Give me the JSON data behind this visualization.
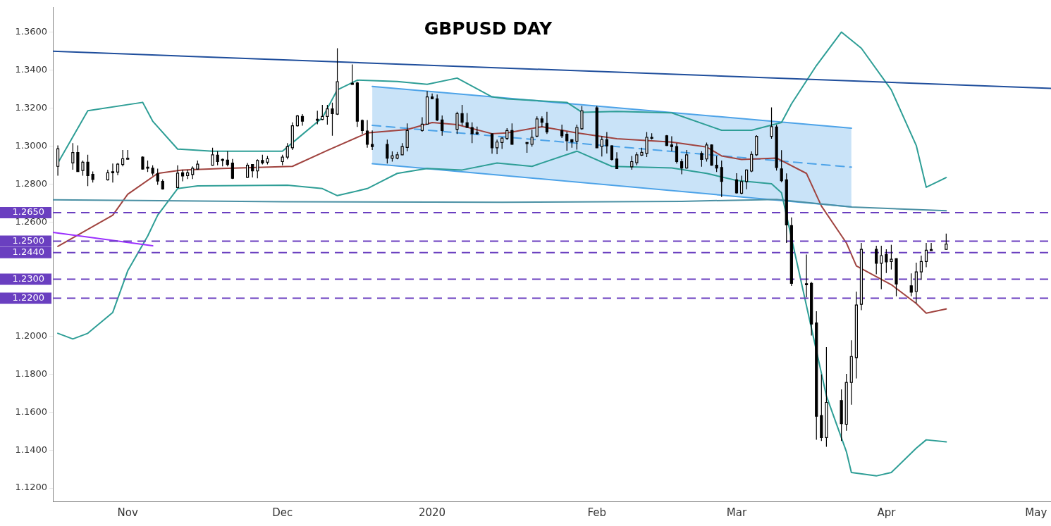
{
  "chart_data": {
    "type": "candlestick",
    "title": "GBPUSD DAY",
    "x": [
      "2019-10-18",
      "2019-10-21",
      "2019-10-22",
      "2019-10-23",
      "2019-10-24",
      "2019-10-25",
      "2019-10-28",
      "2019-10-29",
      "2019-10-30",
      "2019-10-31",
      "2019-11-01",
      "2019-11-04",
      "2019-11-05",
      "2019-11-06",
      "2019-11-07",
      "2019-11-08",
      "2019-11-11",
      "2019-11-12",
      "2019-11-13",
      "2019-11-14",
      "2019-11-15",
      "2019-11-18",
      "2019-11-19",
      "2019-11-20",
      "2019-11-21",
      "2019-11-22",
      "2019-11-25",
      "2019-11-26",
      "2019-11-27",
      "2019-11-28",
      "2019-11-29",
      "2019-12-02",
      "2019-12-03",
      "2019-12-04",
      "2019-12-05",
      "2019-12-06",
      "2019-12-09",
      "2019-12-10",
      "2019-12-11",
      "2019-12-12",
      "2019-12-13",
      "2019-12-16",
      "2019-12-17",
      "2019-12-18",
      "2019-12-19",
      "2019-12-20",
      "2019-12-23",
      "2019-12-24",
      "2019-12-25",
      "2019-12-26",
      "2019-12-27",
      "2019-12-30",
      "2019-12-31",
      "2020-01-01",
      "2020-01-02",
      "2020-01-03",
      "2020-01-06",
      "2020-01-07",
      "2020-01-08",
      "2020-01-09",
      "2020-01-10",
      "2020-01-13",
      "2020-01-14",
      "2020-01-15",
      "2020-01-16",
      "2020-01-17",
      "2020-01-20",
      "2020-01-21",
      "2020-01-22",
      "2020-01-23",
      "2020-01-24",
      "2020-01-27",
      "2020-01-28",
      "2020-01-29",
      "2020-01-30",
      "2020-01-31",
      "2020-02-03",
      "2020-02-04",
      "2020-02-05",
      "2020-02-06",
      "2020-02-07",
      "2020-02-10",
      "2020-02-11",
      "2020-02-12",
      "2020-02-13",
      "2020-02-14",
      "2020-02-17",
      "2020-02-18",
      "2020-02-19",
      "2020-02-20",
      "2020-02-21",
      "2020-02-24",
      "2020-02-25",
      "2020-02-26",
      "2020-02-27",
      "2020-02-28",
      "2020-03-02",
      "2020-03-03",
      "2020-03-04",
      "2020-03-05",
      "2020-03-06",
      "2020-03-09",
      "2020-03-10",
      "2020-03-11",
      "2020-03-12",
      "2020-03-13",
      "2020-03-16",
      "2020-03-17",
      "2020-03-18",
      "2020-03-19",
      "2020-03-20",
      "2020-03-23",
      "2020-03-24",
      "2020-03-25",
      "2020-03-26",
      "2020-03-27",
      "2020-03-30",
      "2020-03-31",
      "2020-04-01",
      "2020-04-02",
      "2020-04-03",
      "2020-04-06",
      "2020-04-07",
      "2020-04-08",
      "2020-04-09",
      "2020-04-10",
      "2020-04-13"
    ],
    "ohlc": [
      [
        1.2894,
        1.3004,
        1.2845,
        1.2986
      ],
      [
        1.2912,
        1.3016,
        1.2876,
        1.2967
      ],
      [
        1.2967,
        1.3004,
        1.2865,
        1.2867
      ],
      [
        1.2872,
        1.2925,
        1.2845,
        1.2916
      ],
      [
        1.2916,
        1.2955,
        1.279,
        1.2845
      ],
      [
        1.2852,
        1.2867,
        1.2809,
        1.2825
      ],
      [
        1.2823,
        1.2876,
        1.2819,
        1.286
      ],
      [
        1.2866,
        1.2909,
        1.2809,
        1.286
      ],
      [
        1.2864,
        1.2912,
        1.2848,
        1.2906
      ],
      [
        1.2904,
        1.298,
        1.2894,
        1.2934
      ],
      [
        1.2934,
        1.298,
        1.2931,
        1.2937
      ],
      [
        1.2943,
        1.2947,
        1.2876,
        1.288
      ],
      [
        1.289,
        1.2925,
        1.2864,
        1.2887
      ],
      [
        1.2884,
        1.29,
        1.2845,
        1.2858
      ],
      [
        1.2855,
        1.2882,
        1.2797,
        1.2817
      ],
      [
        1.2815,
        1.2825,
        1.2772,
        1.2775
      ],
      [
        1.2782,
        1.29,
        1.278,
        1.2858
      ],
      [
        1.286,
        1.2876,
        1.2815,
        1.2843
      ],
      [
        1.2845,
        1.2876,
        1.2827,
        1.286
      ],
      [
        1.2851,
        1.2894,
        1.2827,
        1.2884
      ],
      [
        1.288,
        1.2925,
        1.2876,
        1.2906
      ],
      [
        1.29,
        1.2992,
        1.2898,
        1.2955
      ],
      [
        1.2953,
        1.2974,
        1.29,
        1.2919
      ],
      [
        1.2931,
        1.2935,
        1.2894,
        1.293
      ],
      [
        1.2927,
        1.2974,
        1.2894,
        1.2904
      ],
      [
        1.2911,
        1.2933,
        1.2827,
        1.2831
      ],
      [
        1.2836,
        1.2912,
        1.2834,
        1.29
      ],
      [
        1.2904,
        1.2906,
        1.2836,
        1.287
      ],
      [
        1.287,
        1.2931,
        1.2831,
        1.2925
      ],
      [
        1.2925,
        1.2955,
        1.2904,
        1.2912
      ],
      [
        1.2916,
        1.2949,
        1.2904,
        1.2934
      ],
      [
        1.2919,
        1.2955,
        1.29,
        1.2943
      ],
      [
        1.2943,
        1.3016,
        1.2931,
        1.2998
      ],
      [
        1.2992,
        1.3126,
        1.298,
        1.3108
      ],
      [
        1.3108,
        1.3165,
        1.3104,
        1.316
      ],
      [
        1.3157,
        1.3169,
        1.3108,
        1.3132
      ],
      [
        1.3142,
        1.3187,
        1.3116,
        1.314
      ],
      [
        1.3141,
        1.3218,
        1.3138,
        1.3157
      ],
      [
        1.3157,
        1.3218,
        1.3114,
        1.3197
      ],
      [
        1.3197,
        1.323,
        1.3055,
        1.3172
      ],
      [
        1.3169,
        1.3516,
        1.3165,
        1.334
      ],
      [
        1.3331,
        1.3431,
        1.3324,
        1.3326
      ],
      [
        1.3333,
        1.334,
        1.3102,
        1.3132
      ],
      [
        1.3136,
        1.3141,
        1.3065,
        1.3083
      ],
      [
        1.308,
        1.3138,
        1.2992,
        1.301
      ],
      [
        1.301,
        1.3083,
        1.298,
        1.2998
      ],
      [
        1.301,
        1.3035,
        1.2909,
        1.2937
      ],
      [
        1.2937,
        1.2973,
        1.2919,
        1.2949
      ],
      [
        1.2937,
        1.297,
        1.2931,
        1.2955
      ],
      [
        1.2955,
        1.3016,
        1.2953,
        1.2998
      ],
      [
        1.2994,
        1.312,
        1.2973,
        1.3083
      ],
      [
        1.3083,
        1.3153,
        1.3077,
        1.3116
      ],
      [
        1.3116,
        1.3291,
        1.3114,
        1.326
      ],
      [
        1.326,
        1.3278,
        1.3248,
        1.325
      ],
      [
        1.325,
        1.3272,
        1.3132,
        1.3138
      ],
      [
        1.3138,
        1.3162,
        1.3055,
        1.3083
      ],
      [
        1.3089,
        1.3181,
        1.3065,
        1.3172
      ],
      [
        1.3172,
        1.3218,
        1.3108,
        1.3126
      ],
      [
        1.3124,
        1.3175,
        1.3096,
        1.3099
      ],
      [
        1.3099,
        1.3126,
        1.3016,
        1.3067
      ],
      [
        1.3072,
        1.3104,
        1.3059,
        1.307
      ],
      [
        1.3065,
        1.3067,
        1.2961,
        1.2992
      ],
      [
        1.2992,
        1.3035,
        1.2958,
        1.3022
      ],
      [
        1.302,
        1.3047,
        1.2986,
        1.3043
      ],
      [
        1.3041,
        1.3095,
        1.3033,
        1.3083
      ],
      [
        1.3083,
        1.312,
        1.3008,
        1.301
      ],
      [
        1.302,
        1.3022,
        1.2965,
        1.3018
      ],
      [
        1.301,
        1.3087,
        1.2998,
        1.3047
      ],
      [
        1.3053,
        1.3157,
        1.3047,
        1.3144
      ],
      [
        1.3144,
        1.3157,
        1.3102,
        1.3126
      ],
      [
        1.312,
        1.3181,
        1.3065,
        1.3075
      ],
      [
        1.3083,
        1.3114,
        1.3043,
        1.3055
      ],
      [
        1.3063,
        1.3077,
        1.2977,
        1.3029
      ],
      [
        1.3035,
        1.3037,
        1.2992,
        1.3022
      ],
      [
        1.3026,
        1.3114,
        1.2982,
        1.3099
      ],
      [
        1.3092,
        1.3212,
        1.3087,
        1.3187
      ],
      [
        1.3202,
        1.3212,
        1.299,
        1.2992
      ],
      [
        1.2998,
        1.3053,
        1.2946,
        1.3035
      ],
      [
        1.3035,
        1.3075,
        1.2962,
        1.3002
      ],
      [
        1.3002,
        1.3004,
        1.2925,
        1.2931
      ],
      [
        1.2933,
        1.2968,
        1.288,
        1.2882
      ],
      [
        1.2892,
        1.2949,
        1.2876,
        1.2919
      ],
      [
        1.2913,
        1.2968,
        1.29,
        1.2955
      ],
      [
        1.2953,
        1.2992,
        1.2949,
        1.2968
      ],
      [
        1.2962,
        1.3075,
        1.2943,
        1.3047
      ],
      [
        1.3047,
        1.3068,
        1.3035,
        1.3045
      ],
      [
        1.3055,
        1.3059,
        1.3002,
        1.3004
      ],
      [
        1.3007,
        1.3053,
        1.2974,
        1.2998
      ],
      [
        1.2998,
        1.3016,
        1.2909,
        1.2919
      ],
      [
        1.2919,
        1.2933,
        1.2852,
        1.2885
      ],
      [
        1.2885,
        1.298,
        1.2882,
        1.2955
      ],
      [
        1.2962,
        1.2974,
        1.2892,
        1.2931
      ],
      [
        1.2933,
        1.3019,
        1.2919,
        1.3007
      ],
      [
        1.3007,
        1.301,
        1.2898,
        1.29
      ],
      [
        1.29,
        1.2949,
        1.2864,
        1.2885
      ],
      [
        1.2888,
        1.2925,
        1.2733,
        1.2815
      ],
      [
        1.2823,
        1.2858,
        1.275,
        1.2754
      ],
      [
        1.2753,
        1.2845,
        1.2747,
        1.2814
      ],
      [
        1.2814,
        1.2877,
        1.2774,
        1.2875
      ],
      [
        1.2869,
        1.2973,
        1.2863,
        1.2957
      ],
      [
        1.2955,
        1.3058,
        1.2949,
        1.3052
      ],
      [
        1.3052,
        1.3205,
        1.304,
        1.3103
      ],
      [
        1.3101,
        1.3113,
        1.2872,
        1.2888
      ],
      [
        1.2881,
        1.2979,
        1.2811,
        1.2818
      ],
      [
        1.2823,
        1.2857,
        1.2491,
        1.2586
      ],
      [
        1.2582,
        1.2625,
        1.2265,
        1.2278
      ],
      [
        1.2276,
        1.243,
        1.2204,
        1.2272
      ],
      [
        1.2278,
        1.2285,
        1.2003,
        1.2064
      ],
      [
        1.207,
        1.2131,
        1.1454,
        1.1578
      ],
      [
        1.1582,
        1.1798,
        1.1448,
        1.1466
      ],
      [
        1.1466,
        1.1942,
        1.1417,
        1.1651
      ],
      [
        1.1661,
        1.172,
        1.1448,
        1.1539
      ],
      [
        1.1536,
        1.1801,
        1.1502,
        1.1756
      ],
      [
        1.1756,
        1.1978,
        1.1639,
        1.1893
      ],
      [
        1.1887,
        1.2234,
        1.1777,
        1.2164
      ],
      [
        1.2168,
        1.2491,
        1.2137,
        1.2457
      ],
      [
        1.2457,
        1.2476,
        1.2326,
        1.2384
      ],
      [
        1.2384,
        1.2476,
        1.2247,
        1.2424
      ],
      [
        1.243,
        1.2457,
        1.2332,
        1.2391
      ],
      [
        1.2393,
        1.2481,
        1.2351,
        1.2405
      ],
      [
        1.2408,
        1.241,
        1.221,
        1.2274
      ],
      [
        1.2265,
        1.233,
        1.221,
        1.2232
      ],
      [
        1.2235,
        1.2387,
        1.2174,
        1.2338
      ],
      [
        1.2338,
        1.2424,
        1.2296,
        1.2393
      ],
      [
        1.2393,
        1.2491,
        1.2363,
        1.2452
      ],
      [
        1.2456,
        1.2491,
        1.245,
        1.2452
      ],
      [
        1.2457,
        1.254,
        1.2455,
        1.2485
      ]
    ],
    "series": [
      {
        "type": "line",
        "color": "#1f4e9c",
        "x": [
          "2019-10-17",
          "2020-05-04"
        ],
        "values": [
          1.35,
          1.3305
        ]
      },
      {
        "type": "line",
        "color": "#9b30ff",
        "x": [
          "2019-10-17",
          "2019-11-06"
        ],
        "values": [
          1.2546,
          1.2476
        ]
      },
      {
        "type": "line",
        "color": "#4a90a4",
        "x": [
          "2019-10-17",
          "2019-12-02",
          "2020-01-15",
          "2020-02-20",
          "2020-03-10",
          "2020-03-25",
          "2020-04-13"
        ],
        "values": [
          1.2718,
          1.2708,
          1.2705,
          1.271,
          1.272,
          1.268,
          1.266
        ]
      },
      {
        "type": "line",
        "color": "#2e9e96",
        "x": [
          "2019-10-18",
          "2019-10-24",
          "2019-11-04",
          "2019-11-06",
          "2019-11-11",
          "2019-11-18",
          "2019-12-02",
          "2019-12-05",
          "2019-12-10",
          "2019-12-13",
          "2019-12-17",
          "2019-12-25",
          "2019-12-31",
          "2020-01-06",
          "2020-01-13",
          "2020-01-16",
          "2020-01-28",
          "2020-01-31",
          "2020-02-07",
          "2020-02-18",
          "2020-02-28",
          "2020-03-05",
          "2020-03-11",
          "2020-03-13",
          "2020-03-18",
          "2020-03-23",
          "2020-03-27",
          "2020-04-02",
          "2020-04-07",
          "2020-04-09",
          "2020-04-13"
        ],
        "values": [
          1.2912,
          1.3187,
          1.3231,
          1.3132,
          1.2985,
          1.2974,
          1.2974,
          1.304,
          1.315,
          1.3297,
          1.3348,
          1.3341,
          1.3326,
          1.3359,
          1.326,
          1.3249,
          1.3231,
          1.3179,
          1.3183,
          1.3176,
          1.3084,
          1.3084,
          1.3125,
          1.3223,
          1.3425,
          1.3601,
          1.3516,
          1.3297,
          1.3004,
          1.2784,
          1.2835
        ]
      },
      {
        "type": "line",
        "color": "#2e9e96",
        "x": [
          "2019-10-18",
          "2019-10-21",
          "2019-10-24",
          "2019-10-29",
          "2019-11-01",
          "2019-11-05",
          "2019-11-07",
          "2019-11-11",
          "2019-11-15",
          "2019-12-03",
          "2019-12-10",
          "2019-12-13",
          "2019-12-19",
          "2019-12-25",
          "2019-12-31",
          "2020-01-07",
          "2020-01-14",
          "2020-01-21",
          "2020-01-30",
          "2020-02-06",
          "2020-02-18",
          "2020-02-25",
          "2020-03-02",
          "2020-03-09",
          "2020-03-11",
          "2020-03-20",
          "2020-03-24",
          "2020-03-25",
          "2020-03-30",
          "2020-04-02",
          "2020-04-07",
          "2020-04-09",
          "2020-04-13"
        ],
        "values": [
          1.2015,
          1.1985,
          1.2015,
          1.2125,
          1.2344,
          1.2527,
          1.2637,
          1.2777,
          1.2791,
          1.2795,
          1.2777,
          1.274,
          1.2777,
          1.2857,
          1.2883,
          1.2875,
          1.2912,
          1.2894,
          1.2974,
          1.2894,
          1.2886,
          1.2857,
          1.282,
          1.2802,
          1.2755,
          1.1685,
          1.1392,
          1.1282,
          1.1264,
          1.1282,
          1.141,
          1.1454,
          1.1443
        ]
      },
      {
        "type": "line",
        "color": "#a0433f",
        "x": [
          "2019-10-18",
          "2019-10-29",
          "2019-11-01",
          "2019-11-07",
          "2019-11-12",
          "2019-11-20",
          "2019-12-04",
          "2019-12-11",
          "2019-12-19",
          "2019-12-27",
          "2020-01-01",
          "2020-01-06",
          "2020-01-13",
          "2020-01-16",
          "2020-01-23",
          "2020-01-30",
          "2020-02-07",
          "2020-02-18",
          "2020-02-25",
          "2020-02-28",
          "2020-03-03",
          "2020-03-10",
          "2020-03-16",
          "2020-03-19",
          "2020-03-24",
          "2020-03-26",
          "2020-04-02",
          "2020-04-07",
          "2020-04-09",
          "2020-04-13"
        ],
        "values": [
          1.2473,
          1.2637,
          1.2747,
          1.2857,
          1.2875,
          1.2883,
          1.2894,
          1.2978,
          1.307,
          1.3088,
          1.3125,
          1.3114,
          1.3066,
          1.307,
          1.3103,
          1.307,
          1.304,
          1.3022,
          1.2996,
          1.2949,
          1.293,
          1.2938,
          1.2857,
          1.2685,
          1.2491,
          1.237,
          1.2271,
          1.2172,
          1.2121,
          1.2143
        ]
      },
      {
        "type": "line",
        "color": "#4da3e8",
        "x": [
          "2019-12-20",
          "2020-03-25"
        ],
        "values": [
          1.3315,
          1.3095
        ]
      },
      {
        "type": "line",
        "color": "#4da3e8",
        "x": [
          "2019-12-20",
          "2020-03-25"
        ],
        "values": [
          1.2908,
          1.2681
        ]
      },
      {
        "type": "line",
        "color": "#4da3e8",
        "line_style": "dashed",
        "x": [
          "2019-12-20",
          "2020-03-25"
        ],
        "values": [
          1.311,
          1.289
        ],
        "lower": [
          1.2908,
          1.2681
        ],
        "upper": [
          1.3315,
          1.3095
        ]
      }
    ],
    "ref_lines": [
      {
        "axis": "y",
        "value": 1.265,
        "label": "1.2650",
        "color": "#6a3fc0",
        "line_style": "dashed"
      },
      {
        "axis": "y",
        "value": 1.25,
        "label": "1.2500",
        "color": "#6a3fc0",
        "line_style": "dashed"
      },
      {
        "axis": "y",
        "value": 1.244,
        "label": "1.2440",
        "color": "#6a3fc0",
        "line_style": "dashed"
      },
      {
        "axis": "y",
        "value": 1.23,
        "label": "1.2300",
        "color": "#6a3fc0",
        "line_style": "dashed"
      },
      {
        "axis": "y",
        "value": 1.22,
        "label": "1.2200",
        "color": "#6a3fc0",
        "line_style": "dashed"
      }
    ],
    "xlim": [
      "2019-10-17",
      "2020-05-04"
    ],
    "xticks": [
      {
        "value": "2019-11-01",
        "label": "Nov"
      },
      {
        "value": "2019-12-02",
        "label": "Dec"
      },
      {
        "value": "2020-01-01",
        "label": "2020"
      },
      {
        "value": "2020-02-03",
        "label": "Feb"
      },
      {
        "value": "2020-03-02",
        "label": "Mar"
      },
      {
        "value": "2020-04-01",
        "label": "Apr"
      },
      {
        "value": "2020-05-01",
        "label": "May"
      }
    ],
    "ylim": [
      1.113,
      1.373
    ],
    "yticks": [
      {
        "value": 1.12,
        "label": "1.1200"
      },
      {
        "value": 1.14,
        "label": "1.1400"
      },
      {
        "value": 1.16,
        "label": "1.1600"
      },
      {
        "value": 1.18,
        "label": "1.1800"
      },
      {
        "value": 1.2,
        "label": "1.2000"
      },
      {
        "value": 1.26,
        "label": "1.2600"
      },
      {
        "value": 1.28,
        "label": "1.2800"
      },
      {
        "value": 1.3,
        "label": "1.3000"
      },
      {
        "value": 1.32,
        "label": "1.3200"
      },
      {
        "value": 1.34,
        "label": "1.3400"
      },
      {
        "value": 1.36,
        "label": "1.3600"
      }
    ],
    "marker": "none",
    "grid": false,
    "legend": false
  }
}
